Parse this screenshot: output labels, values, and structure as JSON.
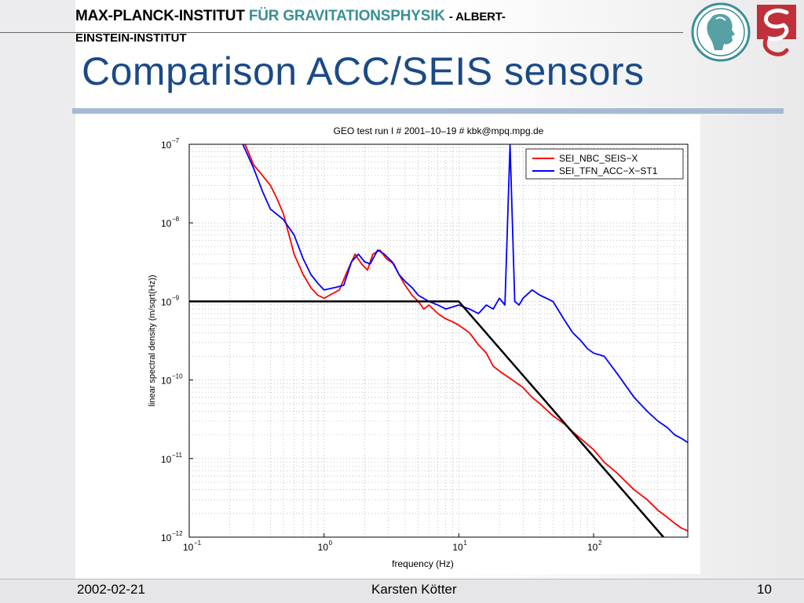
{
  "header": {
    "institute_part1": "MAX-PLANCK-INSTITUT",
    "institute_part2": "FÜR GRAVITATIONSPHYSIK",
    "institute_part3": "- ALBERT-",
    "institute_line2": "EINSTEIN-INSTITUT"
  },
  "slide": {
    "title": "Comparison ACC/SEIS sensors"
  },
  "footer": {
    "date": "2002-02-21",
    "author": "Karsten Kötter",
    "page": "10"
  },
  "colors": {
    "title": "#1a4a87",
    "teal": "#3a8f97",
    "bar": "#a5b9d3",
    "seis": "#ff0000",
    "acc": "#0000ff",
    "model": "#000000"
  },
  "chart_data": {
    "type": "line",
    "title": "GEO test run I # 2001–10–19 # kbk@mpq.mpg.de",
    "xlabel": "frequency (Hz)",
    "ylabel": "linear spectral density (m/sqrt(Hz))",
    "xscale": "log",
    "yscale": "log",
    "xlim": [
      0.1,
      500
    ],
    "ylim": [
      1e-12,
      1e-07
    ],
    "grid": true,
    "legend_position": "top-right",
    "x_ticks": [
      "10^-1",
      "10^0",
      "10^1",
      "10^2"
    ],
    "y_ticks": [
      "10^-7",
      "10^-8",
      "10^-9",
      "10^-10",
      "10^-11",
      "10^-12"
    ],
    "series": [
      {
        "name": "SEI_NBC_SEIS−X",
        "color": "#ff0000",
        "points": [
          [
            0.26,
            1e-07
          ],
          [
            0.3,
            5.5e-08
          ],
          [
            0.35,
            4e-08
          ],
          [
            0.4,
            3e-08
          ],
          [
            0.45,
            2e-08
          ],
          [
            0.5,
            1.3e-08
          ],
          [
            0.55,
            7e-09
          ],
          [
            0.6,
            4e-09
          ],
          [
            0.7,
            2.2e-09
          ],
          [
            0.8,
            1.5e-09
          ],
          [
            0.9,
            1.2e-09
          ],
          [
            1.0,
            1.1e-09
          ],
          [
            1.1,
            1.2e-09
          ],
          [
            1.3,
            1.4e-09
          ],
          [
            1.5,
            2.5e-09
          ],
          [
            1.7,
            4e-09
          ],
          [
            1.9,
            3e-09
          ],
          [
            2.1,
            2.5e-09
          ],
          [
            2.3,
            4e-09
          ],
          [
            2.6,
            4.5e-09
          ],
          [
            2.9,
            3.5e-09
          ],
          [
            3.3,
            3e-09
          ],
          [
            3.6,
            2.2e-09
          ],
          [
            4,
            1.6e-09
          ],
          [
            4.5,
            1.2e-09
          ],
          [
            5,
            1e-09
          ],
          [
            5.5,
            8e-10
          ],
          [
            6,
            9e-10
          ],
          [
            7,
            7e-10
          ],
          [
            8,
            6e-10
          ],
          [
            9,
            5.5e-10
          ],
          [
            10,
            5e-10
          ],
          [
            12,
            4e-10
          ],
          [
            14,
            2.8e-10
          ],
          [
            16,
            2.2e-10
          ],
          [
            18,
            1.5e-10
          ],
          [
            20,
            1.3e-10
          ],
          [
            25,
            1e-10
          ],
          [
            30,
            8e-11
          ],
          [
            35,
            6e-11
          ],
          [
            40,
            5e-11
          ],
          [
            50,
            3.5e-11
          ],
          [
            60,
            2.8e-11
          ],
          [
            70,
            2.2e-11
          ],
          [
            80,
            1.8e-11
          ],
          [
            100,
            1.3e-11
          ],
          [
            120,
            9e-12
          ],
          [
            150,
            6.5e-12
          ],
          [
            200,
            4e-12
          ],
          [
            250,
            3e-12
          ],
          [
            300,
            2.2e-12
          ],
          [
            350,
            1.8e-12
          ],
          [
            400,
            1.5e-12
          ],
          [
            450,
            1.3e-12
          ],
          [
            500,
            1.2e-12
          ]
        ]
      },
      {
        "name": "SEI_TFN_ACC−X−ST1",
        "color": "#0000ff",
        "points": [
          [
            0.25,
            1e-07
          ],
          [
            0.3,
            5e-08
          ],
          [
            0.35,
            2.5e-08
          ],
          [
            0.4,
            1.5e-08
          ],
          [
            0.5,
            1.1e-08
          ],
          [
            0.6,
            7e-09
          ],
          [
            0.7,
            3.5e-09
          ],
          [
            0.8,
            2.2e-09
          ],
          [
            0.9,
            1.7e-09
          ],
          [
            1.0,
            1.4e-09
          ],
          [
            1.2,
            1.5e-09
          ],
          [
            1.4,
            1.6e-09
          ],
          [
            1.6,
            3.2e-09
          ],
          [
            1.8,
            4e-09
          ],
          [
            2.0,
            3.2e-09
          ],
          [
            2.2,
            3e-09
          ],
          [
            2.5,
            4.5e-09
          ],
          [
            2.8,
            4e-09
          ],
          [
            3.2,
            3.2e-09
          ],
          [
            3.6,
            2.2e-09
          ],
          [
            4,
            1.8e-09
          ],
          [
            4.5,
            1.5e-09
          ],
          [
            5,
            1.2e-09
          ],
          [
            6,
            1e-09
          ],
          [
            7,
            9e-10
          ],
          [
            8,
            8e-10
          ],
          [
            10,
            9e-10
          ],
          [
            12,
            8e-10
          ],
          [
            14,
            7e-10
          ],
          [
            16,
            9e-10
          ],
          [
            18,
            8e-10
          ],
          [
            20,
            1.1e-09
          ],
          [
            22,
            9e-10
          ],
          [
            24,
            1e-07
          ],
          [
            26,
            1e-09
          ],
          [
            28,
            9e-10
          ],
          [
            30,
            1.1e-09
          ],
          [
            35,
            1.4e-09
          ],
          [
            40,
            1.2e-09
          ],
          [
            50,
            1e-09
          ],
          [
            60,
            6e-10
          ],
          [
            70,
            4e-10
          ],
          [
            80,
            3.2e-10
          ],
          [
            90,
            2.5e-10
          ],
          [
            100,
            2.2e-10
          ],
          [
            120,
            2e-10
          ],
          [
            150,
            1.2e-10
          ],
          [
            200,
            6e-11
          ],
          [
            250,
            4e-11
          ],
          [
            300,
            3e-11
          ],
          [
            350,
            2.5e-11
          ],
          [
            400,
            2e-11
          ],
          [
            450,
            1.8e-11
          ],
          [
            500,
            1.6e-11
          ]
        ]
      },
      {
        "name": "",
        "color": "#000000",
        "points": [
          [
            0.1,
            1e-09
          ],
          [
            10,
            1e-09
          ],
          [
            330,
            1e-12
          ]
        ]
      }
    ]
  }
}
